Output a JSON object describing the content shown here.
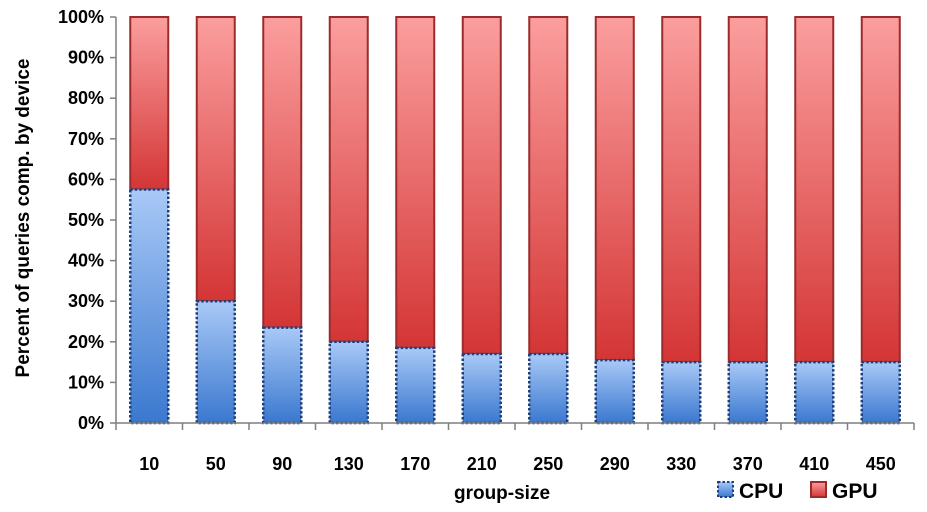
{
  "chart_data": {
    "type": "bar",
    "stacked": true,
    "percent_stacked": true,
    "categories": [
      "10",
      "50",
      "90",
      "130",
      "170",
      "210",
      "250",
      "290",
      "330",
      "370",
      "410",
      "450"
    ],
    "series": [
      {
        "name": "CPU",
        "values": [
          57.5,
          30,
          23.5,
          20,
          18.5,
          17,
          17,
          15.5,
          15,
          15,
          15,
          15
        ],
        "color": "#6fa4e8",
        "border": "#1f3f7a"
      },
      {
        "name": "GPU",
        "values": [
          42.5,
          70,
          76.5,
          80,
          81.5,
          83,
          83,
          84.5,
          85,
          85,
          85,
          85
        ],
        "color": "#e86868",
        "border": "#9c2c2c"
      }
    ],
    "xlabel": "group-size",
    "ylabel": "Percent of queries comp. by device",
    "ylim": [
      0,
      100
    ],
    "yticks": [
      "0%",
      "10%",
      "20%",
      "30%",
      "40%",
      "50%",
      "60%",
      "70%",
      "80%",
      "90%",
      "100%"
    ],
    "grid": false,
    "legend": "bottom-right"
  }
}
